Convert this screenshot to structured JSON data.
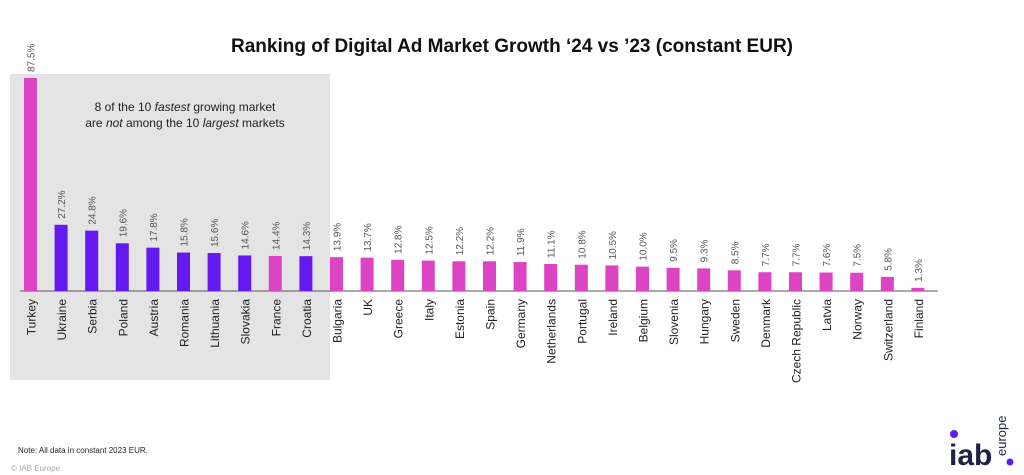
{
  "chart_data": {
    "type": "bar",
    "title": "Ranking of Digital Ad Market Growth ‘24 vs ’23 (constant EUR)",
    "xlabel": "",
    "ylabel": "",
    "ylim": [
      0,
      87.5
    ],
    "grid": false,
    "value_suffix": "%",
    "categories": [
      "Turkey",
      "Ukraine",
      "Serbia",
      "Poland",
      "Austria",
      "Romania",
      "Lithuania",
      "Slovakia",
      "France",
      "Croatia",
      "Bulgaria",
      "UK",
      "Greece",
      "Italy",
      "Estonia",
      "Spain",
      "Germany",
      "Netherlands",
      "Portugal",
      "Ireland",
      "Belgium",
      "Slovenia",
      "Hungary",
      "Sweden",
      "Denmark",
      "Czech Republic",
      "Latvia",
      "Norway",
      "Switzerland",
      "Finland"
    ],
    "values": [
      87.5,
      27.2,
      24.8,
      19.6,
      17.8,
      15.8,
      15.6,
      14.6,
      14.4,
      14.3,
      13.9,
      13.7,
      12.8,
      12.5,
      12.2,
      12.2,
      11.9,
      11.1,
      10.8,
      10.5,
      10.0,
      9.5,
      9.3,
      8.5,
      7.7,
      7.7,
      7.6,
      7.5,
      5.8,
      1.3
    ],
    "labels": [
      "87.5%",
      "27.2%",
      "24.8%",
      "19.6%",
      "17.8%",
      "15.8%",
      "15.6%",
      "14.6%",
      "14.4%",
      "14.3%",
      "13.9%",
      "13.7%",
      "12.8%",
      "12.5%",
      "12.2%",
      "12.2%",
      "11.9%",
      "11.1%",
      "10.8%",
      "10.5%",
      "10.0%",
      "9.5%",
      "9.3%",
      "8.5%",
      "7.7%",
      "7.7%",
      "7.6%",
      "7.5%",
      "5.8%",
      "1.3%"
    ],
    "highlight_not_top10_largest": [
      false,
      true,
      true,
      true,
      true,
      true,
      true,
      true,
      false,
      true,
      false,
      false,
      false,
      false,
      false,
      false,
      false,
      false,
      false,
      false,
      false,
      false,
      false,
      false,
      false,
      false,
      false,
      false,
      false,
      false
    ],
    "colors": {
      "default": "#dd44c4",
      "highlight": "#6319f0",
      "axis": "#555555",
      "label": "#555555"
    },
    "annotation": {
      "line1": [
        "8 of the 10 ",
        "fastest",
        " growing market"
      ],
      "line2": [
        "are ",
        "not",
        " among the 10 ",
        "largest",
        " markets"
      ]
    }
  },
  "footer": {
    "note": "Note: All data in constant 2023 EUR.",
    "copyright": "© IAB Europe"
  },
  "logo": {
    "main": "iab",
    "sub": "europe",
    "dot_color": "#6319f0",
    "text_color": "#1e2346"
  }
}
